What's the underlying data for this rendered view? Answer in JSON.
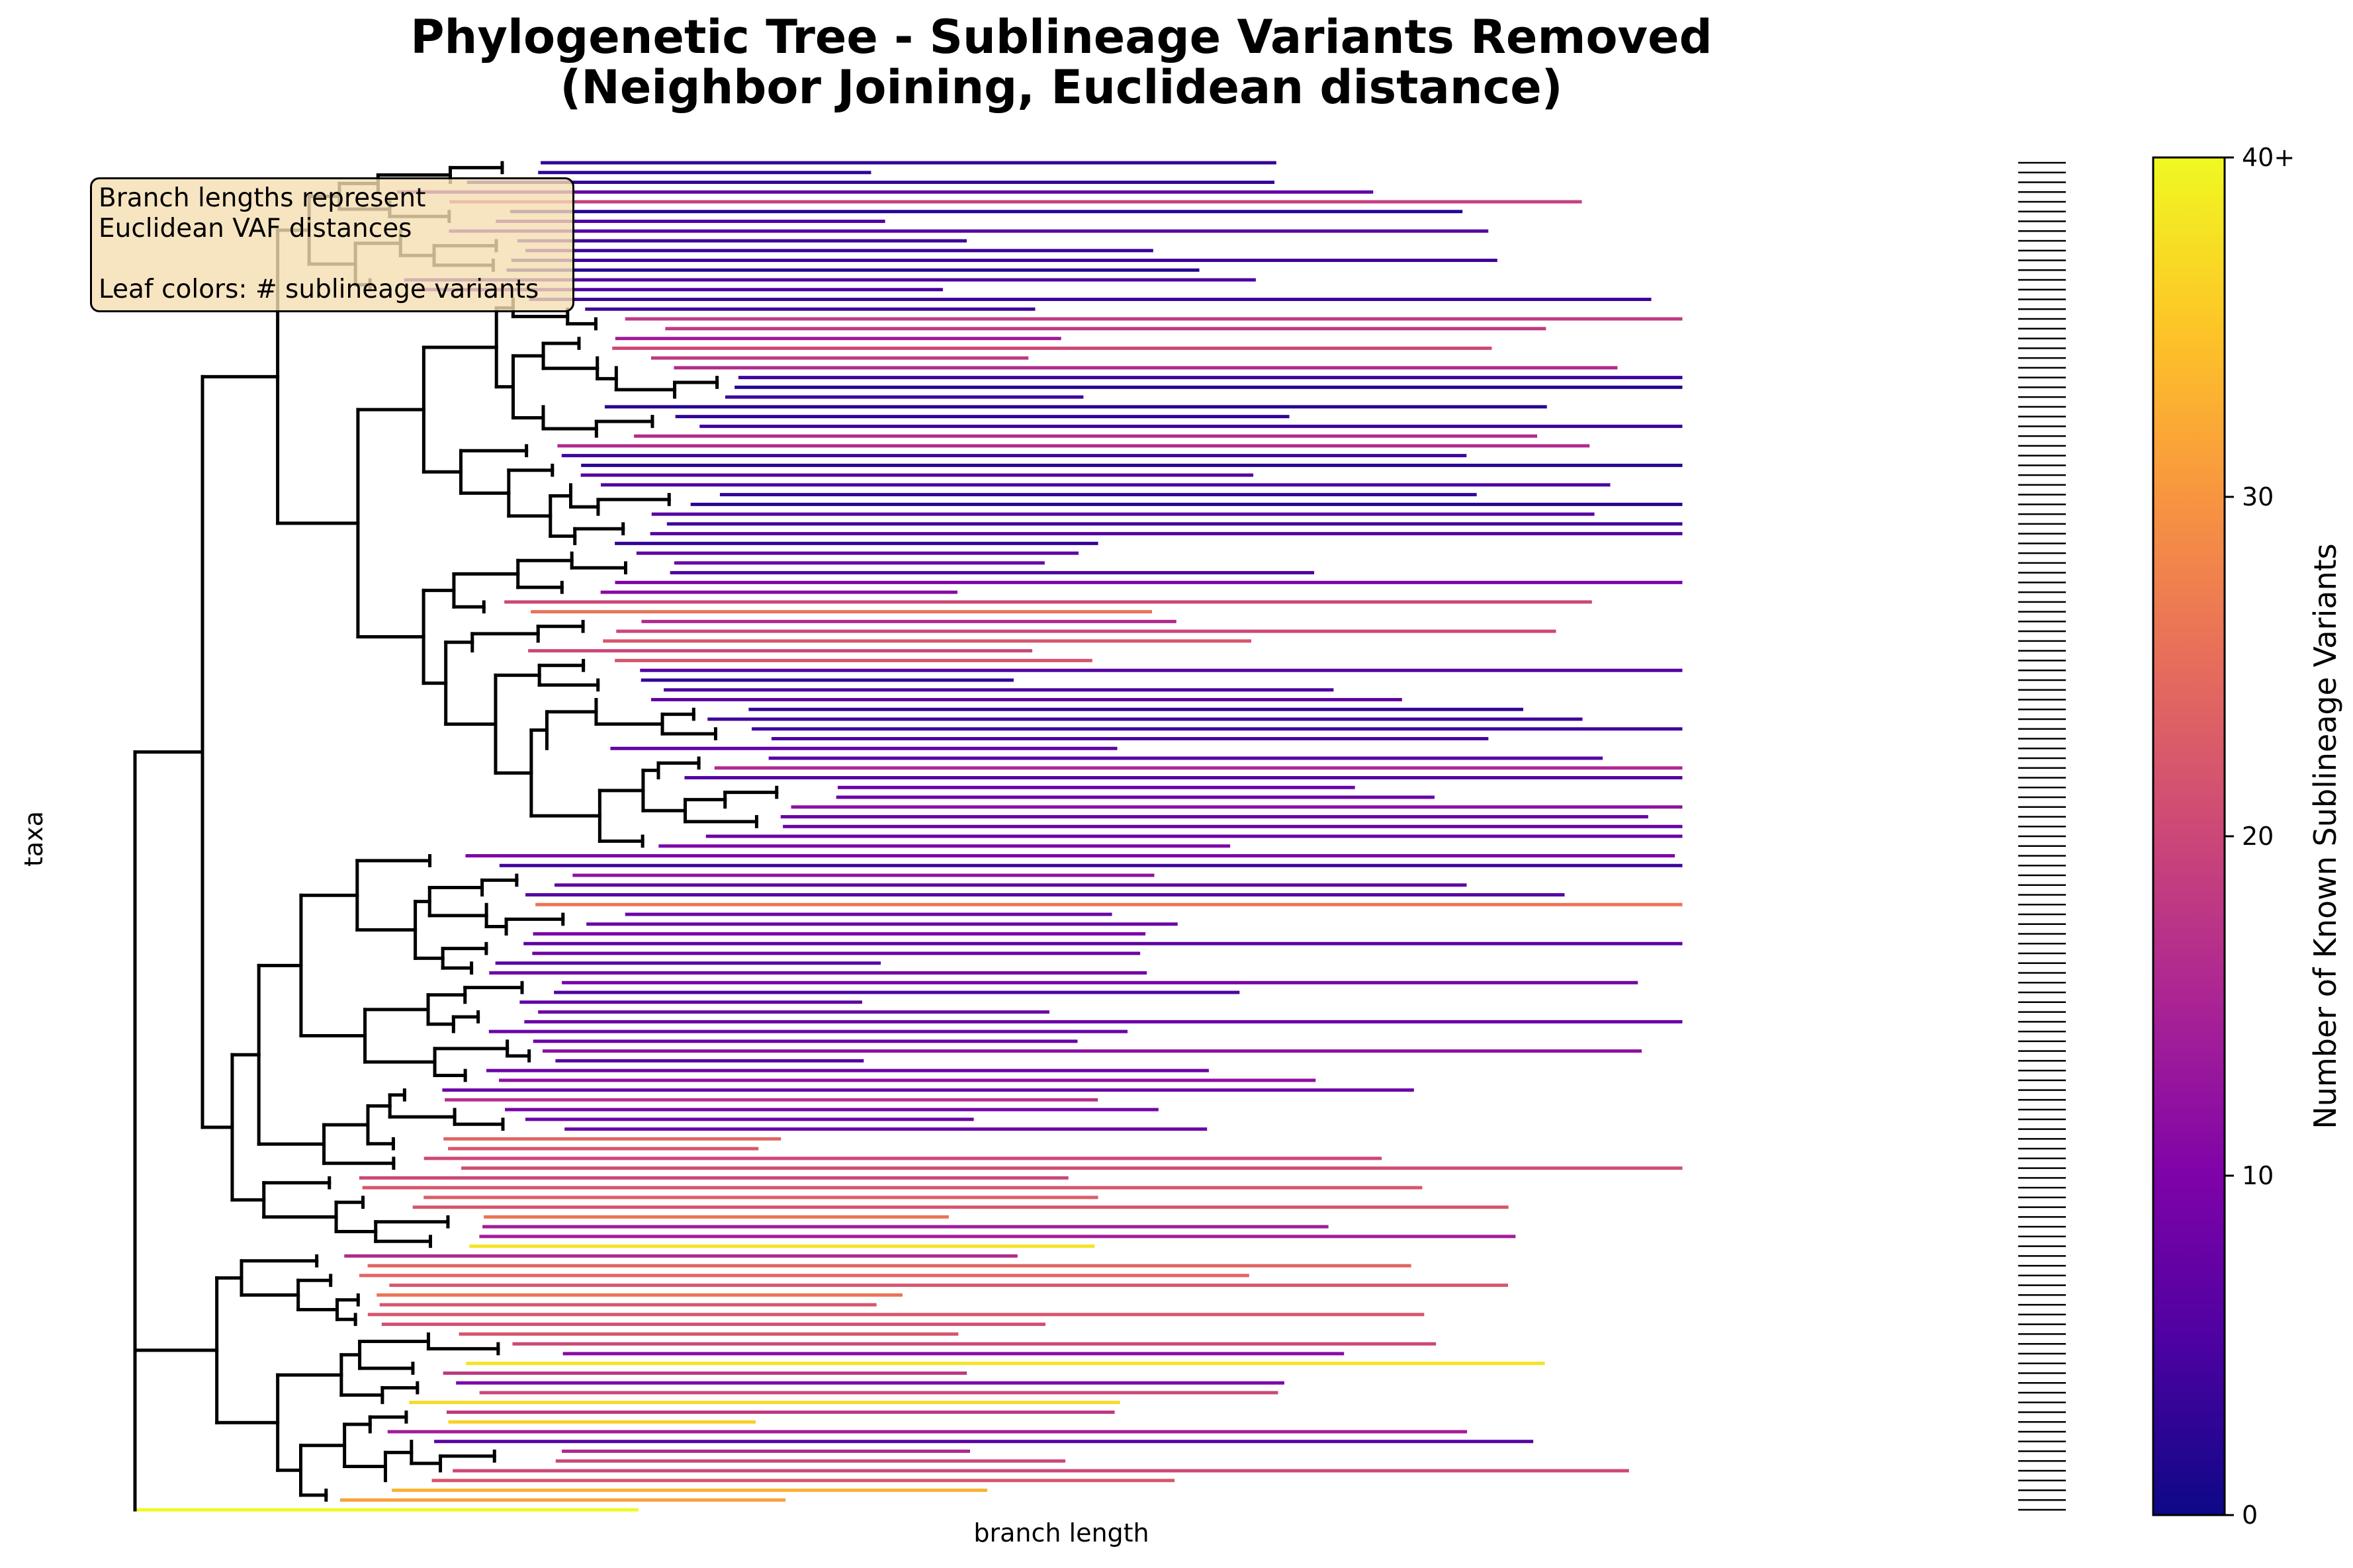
{
  "chart_data": {
    "type": "phylogenetic-tree",
    "title_line1": "Phylogenetic Tree - Sublineage Variants Removed",
    "title_line2": "(Neighbor Joining, Euclidean distance)",
    "xlabel": "branch length",
    "ylabel": "taxa",
    "annotation_line1": "Branch lengths represent",
    "annotation_line2": "Euclidean VAF distances",
    "annotation_line3": "Leaf colors: # sublineage variants",
    "colorbar": {
      "label": "Number of Known Sublineage Variants",
      "colormap": "plasma",
      "range": [
        0,
        40
      ],
      "ticks": [
        "0",
        "10",
        "20",
        "30",
        "40+"
      ]
    },
    "leaf_variant_counts": [
      3,
      3,
      3,
      7,
      19,
      2,
      6,
      6,
      4,
      4,
      4,
      2,
      5,
      5,
      4,
      4,
      18,
      18,
      14,
      20,
      18,
      16,
      4,
      2,
      4,
      2,
      3,
      4,
      16,
      16,
      4,
      2,
      6,
      5,
      3,
      2,
      6,
      4,
      6,
      3,
      7,
      8,
      5,
      10,
      11,
      20,
      26,
      16,
      20,
      22,
      20,
      22,
      6,
      3,
      5,
      7,
      3,
      4,
      4,
      5,
      7,
      6,
      16,
      6,
      8,
      8,
      12,
      8,
      8,
      8,
      10,
      10,
      4,
      12,
      7,
      6,
      26,
      8,
      8,
      10,
      7,
      8,
      6,
      9,
      9,
      5,
      7,
      8,
      8,
      8,
      8,
      12,
      6,
      8,
      12,
      8,
      17,
      9,
      8,
      8,
      24,
      22,
      20,
      21,
      20,
      22,
      23,
      22,
      26,
      14,
      14,
      38,
      16,
      24,
      24,
      22,
      26,
      22,
      22,
      21,
      22,
      20,
      11,
      38,
      18,
      10,
      20,
      37,
      18,
      36,
      14,
      6,
      16,
      20,
      20,
      22,
      33,
      31,
      40
    ]
  }
}
